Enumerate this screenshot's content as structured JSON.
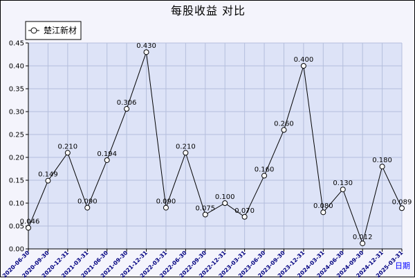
{
  "chart_data": {
    "type": "line",
    "title": "每股收益 对比",
    "xlabel": "日期",
    "ylabel": "",
    "ylim": [
      0,
      0.45
    ],
    "yticks": [
      "0.00",
      "0.05",
      "0.10",
      "0.15",
      "0.20",
      "0.25",
      "0.30",
      "0.35",
      "0.40",
      "0.45"
    ],
    "grid": true,
    "legend": "top-left",
    "categories": [
      "2020-06-30",
      "2020-09-30",
      "2020-12-31",
      "2021-03-31",
      "2021-06-30",
      "2021-09-30",
      "2021-12-31",
      "2022-03-31",
      "2022-06-30",
      "2022-09-30",
      "2022-12-31",
      "2023-03-31",
      "2023-06-30",
      "2023-09-30",
      "2023-12-31",
      "2024-03-31",
      "2024-06-30",
      "2024-09-30",
      "2024-12-31",
      "2025-03-31"
    ],
    "series": [
      {
        "name": "楚江新材",
        "color": "#000000",
        "values": [
          0.046,
          0.149,
          0.21,
          0.09,
          0.194,
          0.306,
          0.43,
          0.09,
          0.21,
          0.075,
          0.1,
          0.07,
          0.16,
          0.26,
          0.4,
          0.08,
          0.13,
          0.012,
          0.18,
          0.089
        ],
        "labels": [
          "0.046",
          "0.149",
          "0.210",
          "0.090",
          "0.194",
          "0.306",
          "0.430",
          "0.090",
          "0.210",
          "0.075",
          "0.100",
          "0.070",
          "0.160",
          "0.260",
          "0.400",
          "0.080",
          "0.130",
          "0.012",
          "0.180",
          "0.089"
        ]
      }
    ],
    "colors": {
      "plot_bg": "#dde3f7",
      "grid": "#b4bedc",
      "tick_x": "#000080",
      "xlabel": "#0000ff"
    }
  }
}
